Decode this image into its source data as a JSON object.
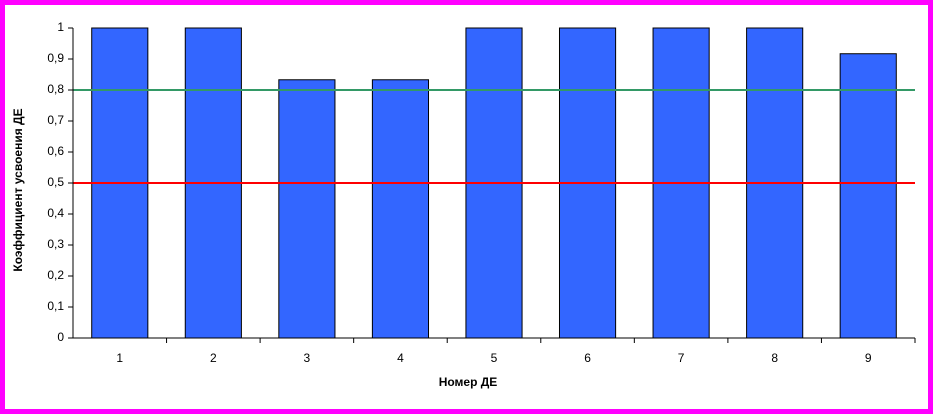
{
  "chart_data": {
    "type": "bar",
    "x_label": "Номер ДЕ",
    "y_label": "Коэффициент усвоения ДЕ",
    "categories": [
      "1",
      "2",
      "3",
      "4",
      "5",
      "6",
      "7",
      "8",
      "9"
    ],
    "values": [
      1,
      1,
      0.833,
      0.833,
      1,
      1,
      1,
      1,
      0.917
    ],
    "color": "#3366ff",
    "ylim": [
      0,
      1
    ],
    "yticks": [
      0,
      {
        "value": 0.1,
        "label": "0,1"
      },
      {
        "value": 0.2,
        "label": "0,2"
      },
      {
        "value": 0.3,
        "label": "0,3"
      },
      {
        "value": 0.4,
        "label": "0,4"
      },
      {
        "value": 0.5,
        "label": "0,5"
      },
      {
        "value": 0.6,
        "label": "0,6"
      },
      {
        "value": 0.7,
        "label": "0,7"
      },
      {
        "value": 0.8,
        "label": "0,8"
      },
      {
        "value": 0.9,
        "label": "0,9"
      },
      1
    ],
    "reference_lines": [
      {
        "value": 0.8,
        "color": "#339966"
      },
      {
        "value": 0.5,
        "color": "#ff0000"
      }
    ]
  }
}
